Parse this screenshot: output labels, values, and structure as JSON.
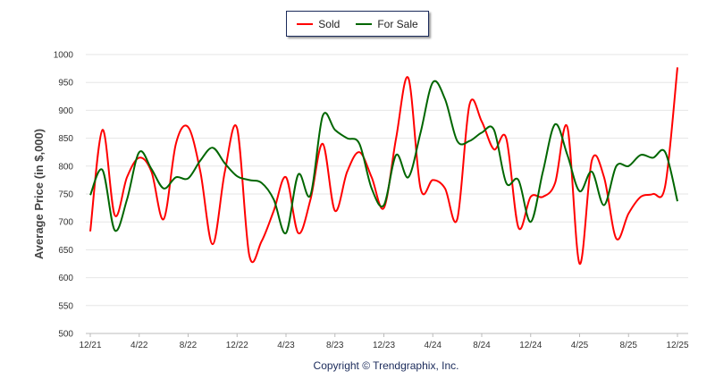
{
  "chart_data": {
    "type": "line",
    "title": "",
    "xlabel": "",
    "ylabel": "Average Price (in $,000)",
    "ylim": [
      500,
      1000
    ],
    "yticks": [
      500,
      550,
      600,
      650,
      700,
      750,
      800,
      850,
      900,
      950,
      1000
    ],
    "x_tick_labels": [
      "12/21",
      "4/22",
      "8/22",
      "12/22",
      "4/23",
      "8/23",
      "12/23",
      "4/24",
      "8/24",
      "12/24",
      "4/25",
      "8/25",
      "12/25"
    ],
    "x_range": [
      "12/21",
      "12/25"
    ],
    "interval": "monthly",
    "grid": true,
    "legend_position": "top-center",
    "series": [
      {
        "name": "Sold",
        "color": "#ff0000",
        "values": [
          683,
          865,
          712,
          780,
          815,
          790,
          705,
          840,
          870,
          790,
          660,
          790,
          868,
          640,
          665,
          720,
          780,
          680,
          740,
          840,
          720,
          790,
          825,
          780,
          725,
          850,
          958,
          760,
          775,
          760,
          705,
          910,
          880,
          830,
          850,
          690,
          745,
          745,
          770,
          870,
          625,
          810,
          780,
          670,
          715,
          745,
          750,
          765,
          977
        ]
      },
      {
        "name": "For Sale",
        "color": "#006600",
        "values": [
          748,
          793,
          685,
          740,
          825,
          795,
          760,
          780,
          778,
          810,
          833,
          805,
          782,
          775,
          770,
          740,
          680,
          785,
          748,
          890,
          865,
          850,
          840,
          760,
          730,
          820,
          780,
          860,
          950,
          920,
          845,
          845,
          860,
          865,
          770,
          775,
          700,
          790,
          875,
          820,
          755,
          790,
          730,
          800,
          800,
          820,
          815,
          825,
          737
        ]
      }
    ]
  },
  "legend": {
    "sold": "Sold",
    "for_sale": "For Sale"
  },
  "footer": {
    "copyright": "Copyright © Trendgraphix, Inc."
  }
}
